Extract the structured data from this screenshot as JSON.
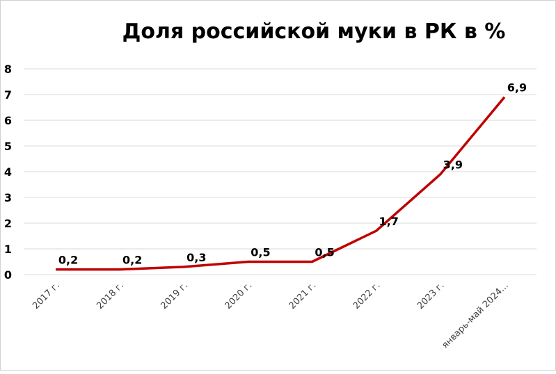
{
  "chart_data": {
    "type": "line",
    "title": "Доля российской муки в РК в %",
    "categories": [
      "2017 г.",
      "2018 г.",
      "2019 г.",
      "2020 г.",
      "2021 г.",
      "2022 г.",
      "2023 г.",
      "январь-май 2024..."
    ],
    "series": [
      {
        "values": [
          0.2,
          0.2,
          0.3,
          0.5,
          0.5,
          1.7,
          3.9,
          6.9
        ]
      }
    ],
    "data_labels": [
      "0,2",
      "0,2",
      "0,3",
      "0,5",
      "0,5",
      "1,7",
      "3,9",
      "6,9"
    ],
    "yticks": [
      "0",
      "1",
      "2",
      "3",
      "4",
      "5",
      "6",
      "7",
      "8"
    ],
    "ylim": [
      0,
      8
    ],
    "grid": true,
    "legend": "none",
    "line_color": "#C00000"
  }
}
